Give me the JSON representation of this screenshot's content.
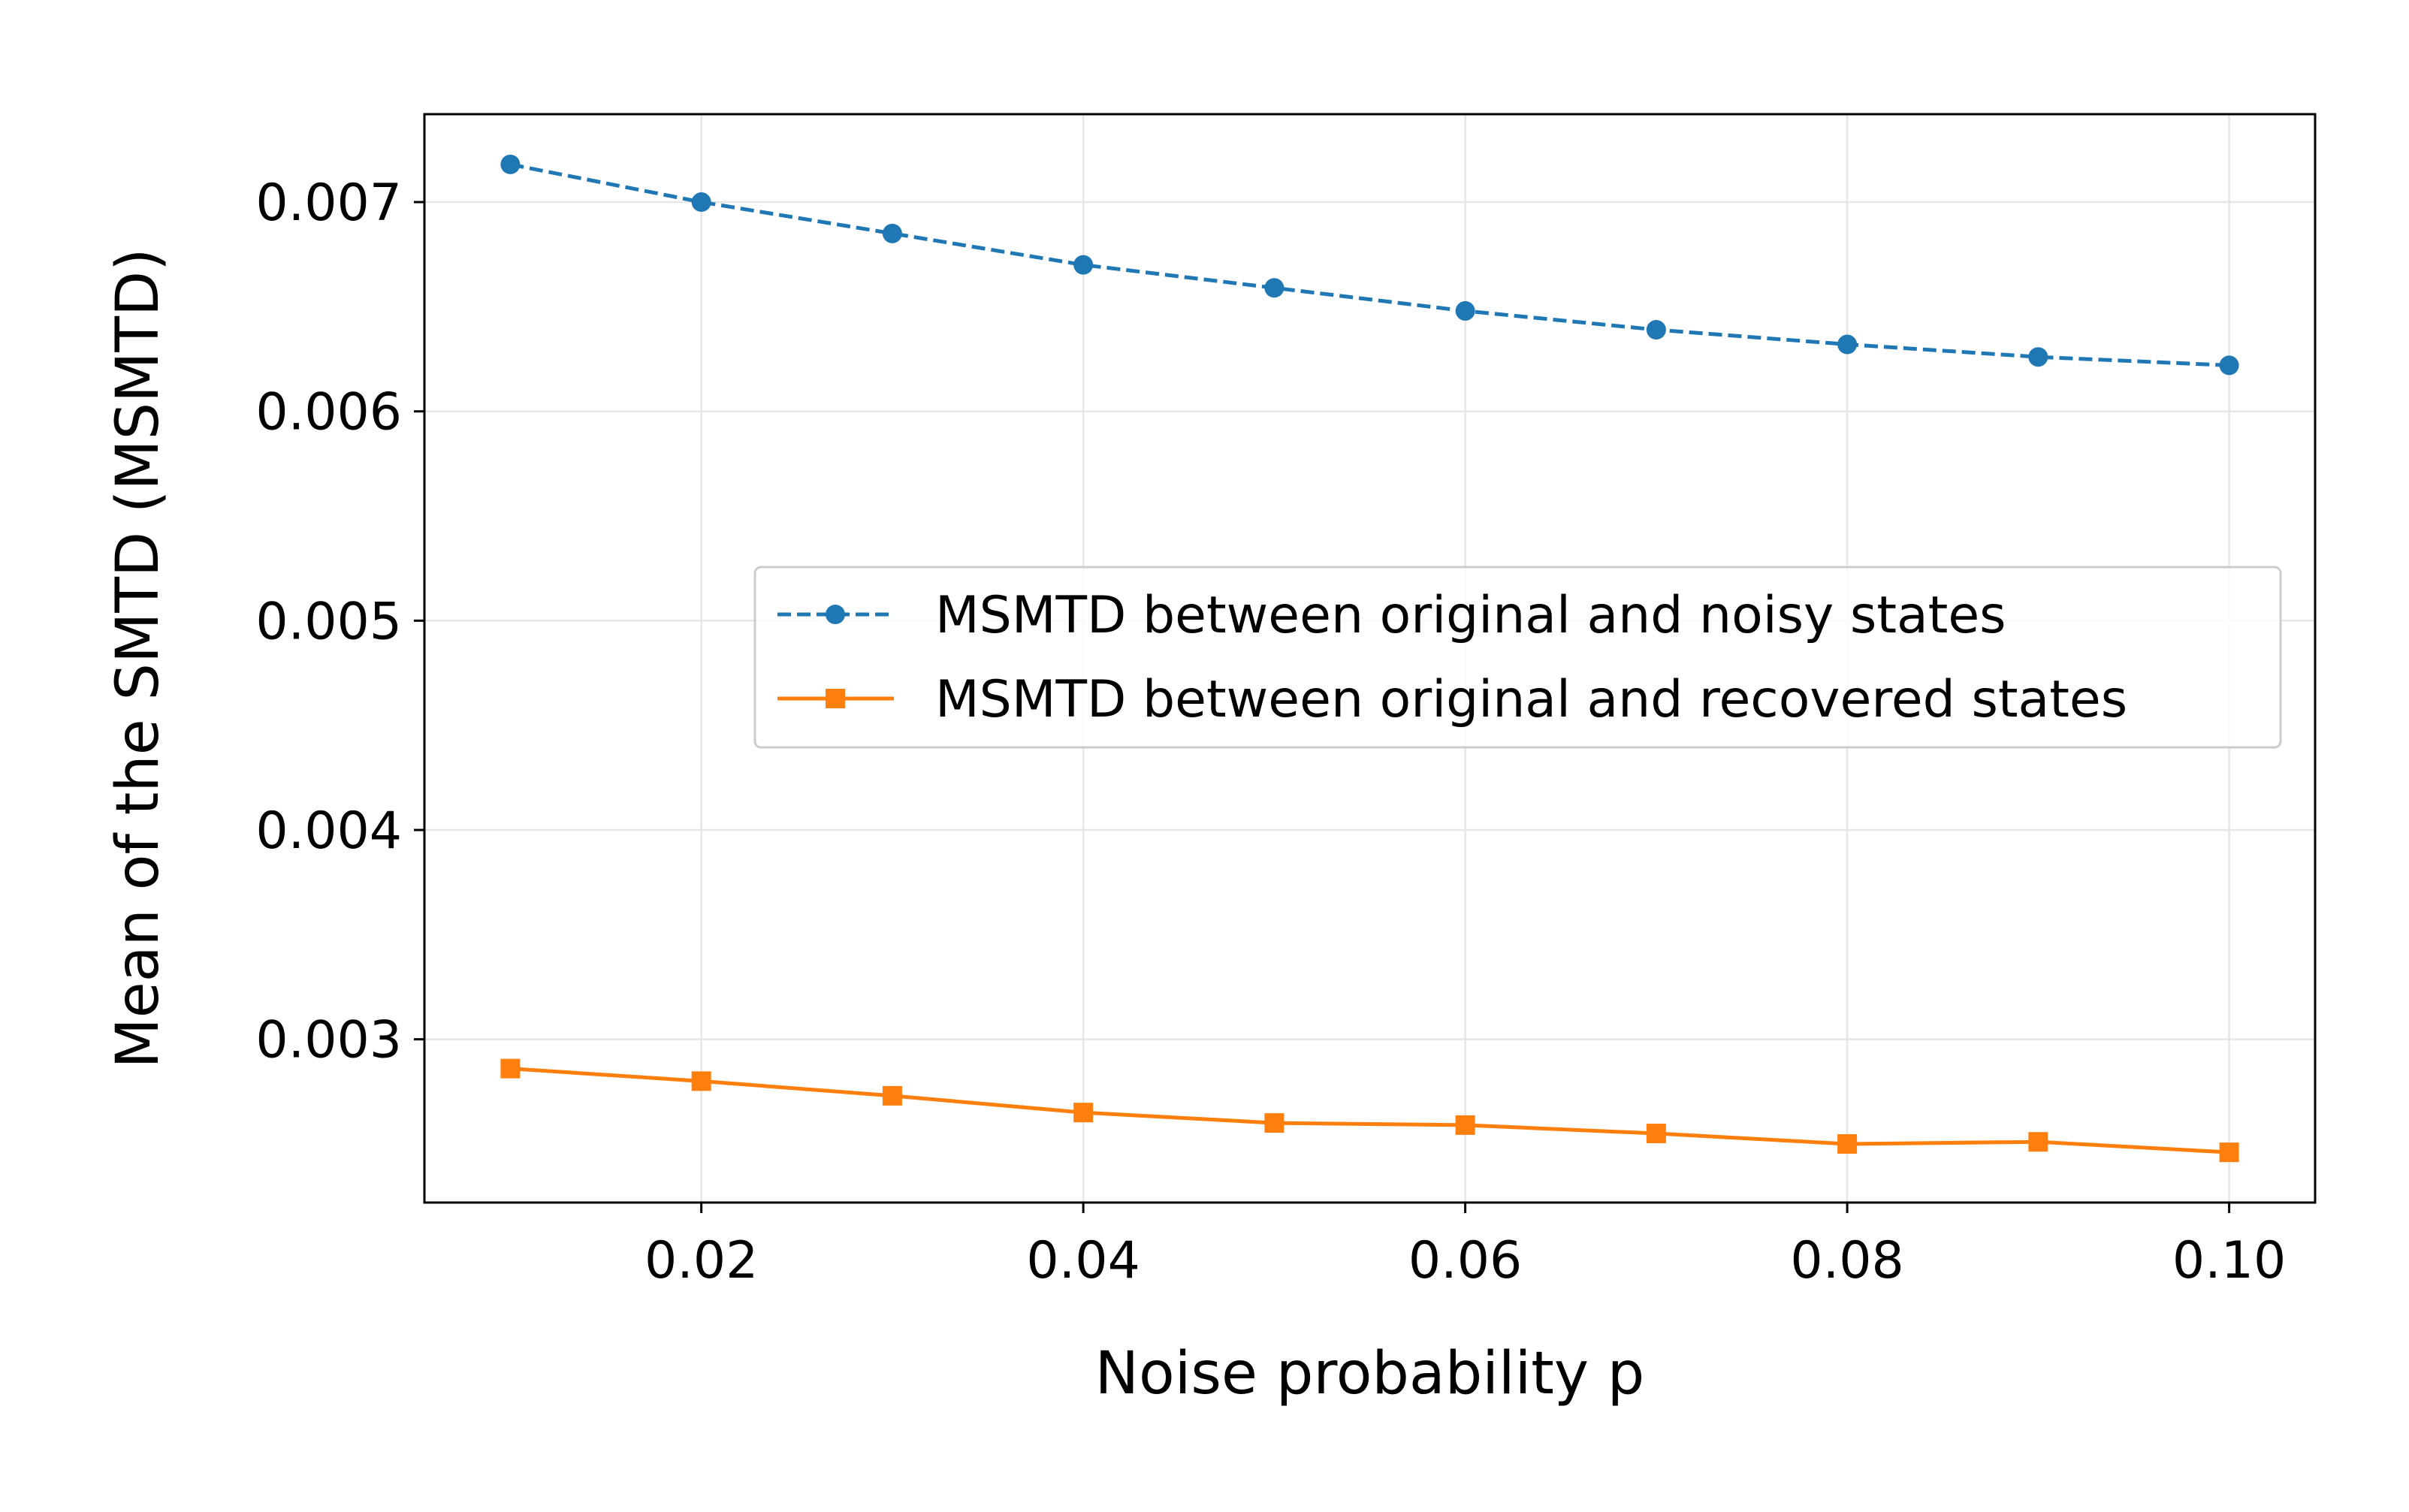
{
  "chart_data": {
    "type": "line",
    "title": "",
    "xlabel": "Noise probability p",
    "ylabel": "Mean of the SMTD (MSMTD)",
    "x": [
      0.01,
      0.02,
      0.03,
      0.04,
      0.05,
      0.06,
      0.07,
      0.08,
      0.09,
      0.1
    ],
    "xlim": [
      0.0055,
      0.1045
    ],
    "ylim": [
      0.00222,
      0.00742
    ],
    "xticks": [
      0.02,
      0.04,
      0.06,
      0.08,
      0.1
    ],
    "xtick_labels": [
      "0.02",
      "0.04",
      "0.06",
      "0.08",
      "0.10"
    ],
    "yticks": [
      0.003,
      0.004,
      0.005,
      0.006,
      0.007
    ],
    "ytick_labels": [
      "0.003",
      "0.004",
      "0.005",
      "0.006",
      "0.007"
    ],
    "grid": true,
    "legend_position": "center-right",
    "series": [
      {
        "name": "MSMTD between original and noisy states",
        "values": [
          0.00718,
          0.007,
          0.00685,
          0.0067,
          0.00659,
          0.00648,
          0.00639,
          0.00632,
          0.00626,
          0.00622
        ],
        "color": "#1f77b4",
        "line_style": "dashed",
        "marker": "circle"
      },
      {
        "name": "MSMTD between original and recovered states",
        "values": [
          0.00286,
          0.0028,
          0.00273,
          0.00265,
          0.0026,
          0.00259,
          0.00255,
          0.0025,
          0.00251,
          0.00246
        ],
        "color": "#ff7f0e",
        "line_style": "solid",
        "marker": "square"
      }
    ]
  }
}
